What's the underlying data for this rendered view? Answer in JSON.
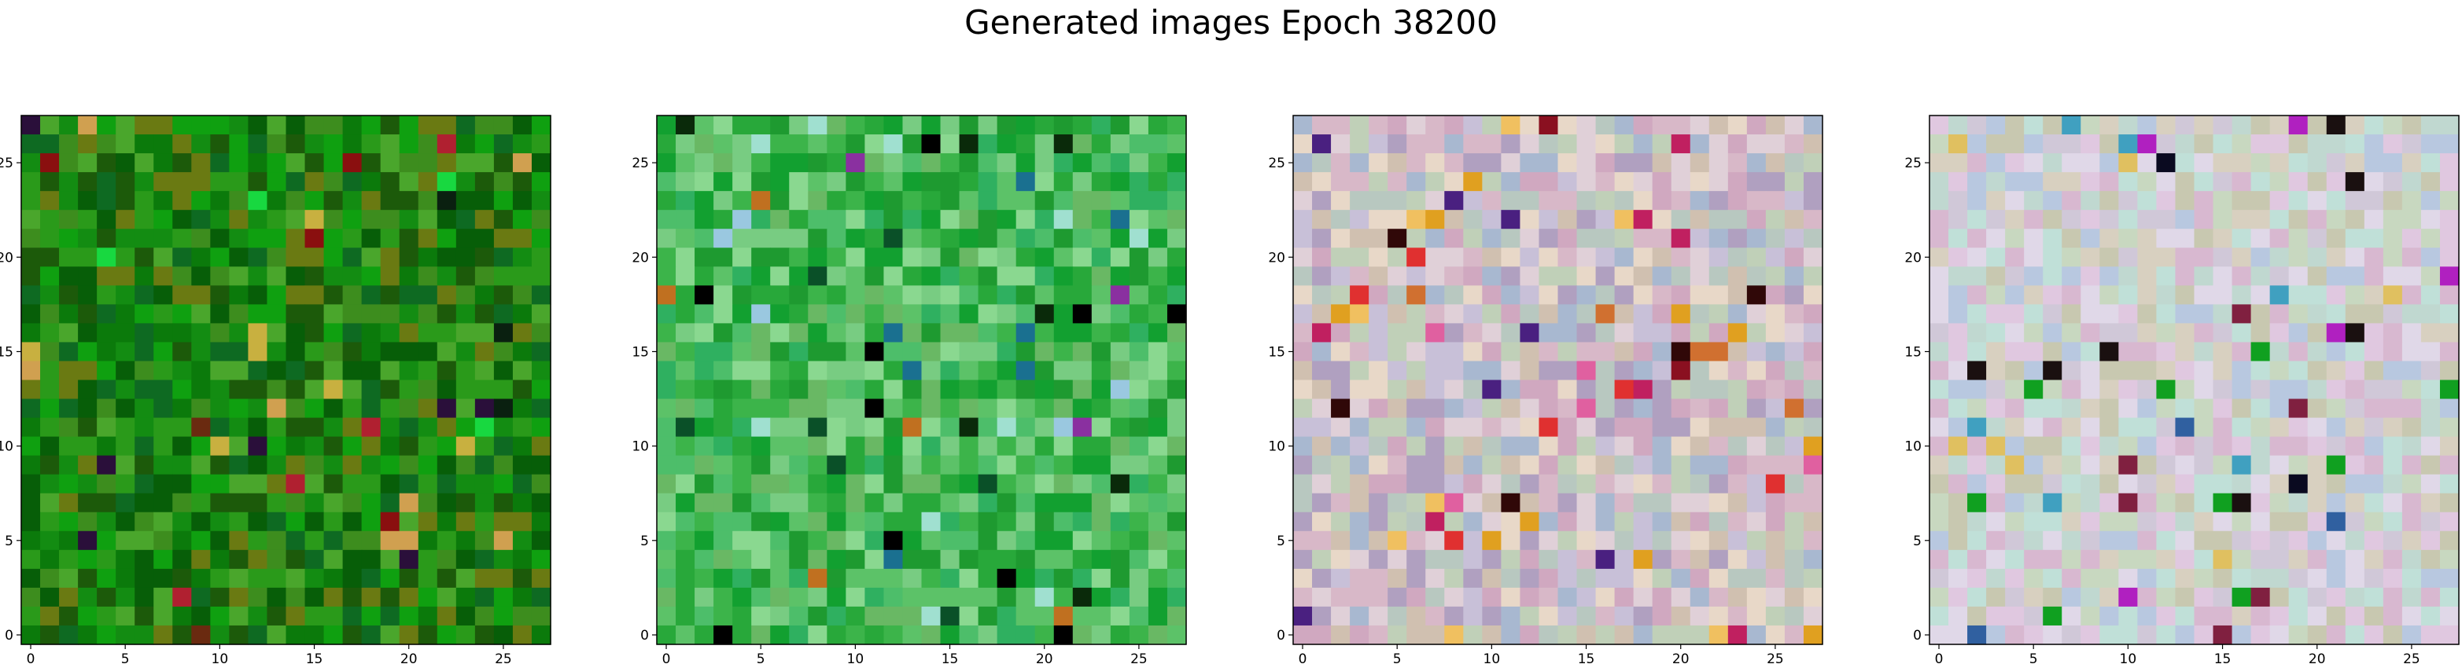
{
  "title": "Generated images Epoch 38200",
  "chart_data": [
    {
      "type": "heatmap",
      "grid": 28,
      "xticks": [
        0,
        5,
        10,
        15,
        20,
        25
      ],
      "yticks": [
        0,
        5,
        10,
        15,
        20,
        25
      ],
      "xlim": [
        -0.5,
        27.5
      ],
      "ylim": [
        27.5,
        -0.5
      ],
      "palette": [
        "#0b7a0b",
        "#138c12",
        "#075e08",
        "#2a9a1a",
        "#0fa010",
        "#3d8d1e",
        "#6a7a12",
        "#0e6a22",
        "#1c5a0a",
        "#4aa62c"
      ],
      "accents": [
        "#8a0f0f",
        "#c8b040",
        "#2a0f3a",
        "#b02030",
        "#18d840",
        "#d0a050",
        "#0a2010",
        "#6a2a10"
      ]
    },
    {
      "type": "heatmap",
      "grid": 28,
      "xticks": [
        0,
        5,
        10,
        15,
        20,
        25
      ],
      "yticks": [
        0,
        5,
        10,
        15,
        20,
        25
      ],
      "xlim": [
        -0.5,
        27.5
      ],
      "ylim": [
        27.5,
        -0.5
      ],
      "palette": [
        "#3cb44a",
        "#5cc268",
        "#28a83a",
        "#78cc82",
        "#1e9a30",
        "#4dbe6a",
        "#8ad890",
        "#2fb060",
        "#69b864",
        "#12a030"
      ],
      "accents": [
        "#0a2a0a",
        "#000000",
        "#8a30a0",
        "#a0e0d0",
        "#1a7090",
        "#c07020",
        "#0a5028",
        "#9ac8e0"
      ]
    },
    {
      "type": "heatmap",
      "grid": 28,
      "xticks": [
        0,
        5,
        10,
        15,
        20,
        25
      ],
      "yticks": [
        0,
        5,
        10,
        15,
        20,
        25
      ],
      "xlim": [
        -0.5,
        27.5
      ],
      "ylim": [
        27.5,
        -0.5
      ],
      "palette": [
        "#d8b8c8",
        "#c8c0d8",
        "#e0d0d8",
        "#b8c8c0",
        "#d0a8c0",
        "#c0d0b8",
        "#a8b8d0",
        "#e8d8c8",
        "#d0c0b0",
        "#b0a0c0"
      ],
      "accents": [
        "#e03030",
        "#e0a020",
        "#c02060",
        "#f0c060",
        "#300808",
        "#e060a0",
        "#8a1020",
        "#d07030",
        "#4a2080"
      ]
    },
    {
      "type": "heatmap",
      "grid": 28,
      "xticks": [
        0,
        5,
        10,
        15,
        20,
        25
      ],
      "yticks": [
        0,
        5,
        10,
        15,
        20,
        25
      ],
      "xlim": [
        -0.5,
        27.5
      ],
      "ylim": [
        27.5,
        -0.5
      ],
      "palette": [
        "#d0c8d8",
        "#c0d8d0",
        "#e0c8e0",
        "#c8d8c0",
        "#d8d0c0",
        "#b8c8e0",
        "#e0d8e8",
        "#c0e0d8",
        "#d8b8d0",
        "#c8c8b0"
      ],
      "accents": [
        "#1a1010",
        "#b020c0",
        "#10a020",
        "#3060a0",
        "#e0c060",
        "#40a0c0",
        "#802040",
        "#0a0a20"
      ]
    }
  ]
}
